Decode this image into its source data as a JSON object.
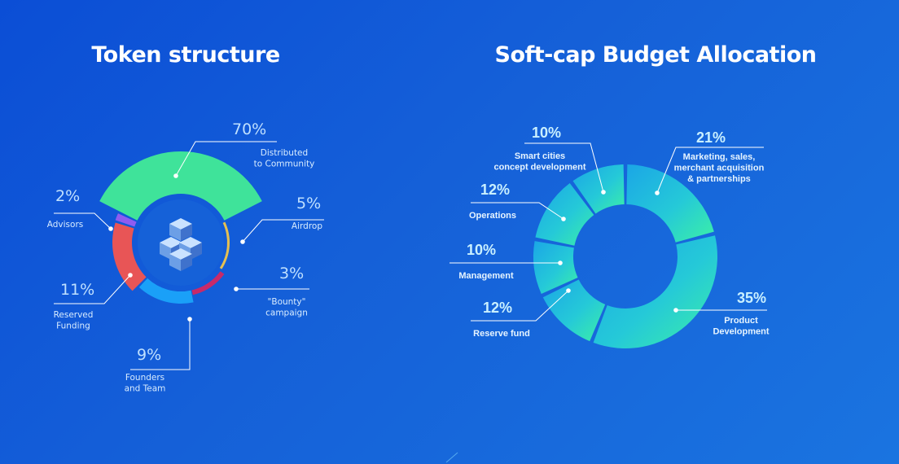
{
  "chart_data": [
    {
      "type": "pie",
      "title": "Token structure",
      "categories": [
        "Distributed to Community",
        "Airdrop",
        "\"Bounty\" campaign",
        "Founders and Team",
        "Reserved Funding",
        "Advisors"
      ],
      "values": [
        70,
        5,
        3,
        9,
        11,
        2
      ],
      "value_labels": [
        "70%",
        "5%",
        "3%",
        "9%",
        "11%",
        "2%"
      ],
      "colors": [
        "#3fe39a",
        "#e5c051",
        "#c72a6a",
        "#1aa0f8",
        "#e85556",
        "#8f5cf0"
      ]
    },
    {
      "type": "pie",
      "title": "Soft-cap Budget Allocation",
      "categories": [
        "Marketing, sales, merchant acquisition & partnerships",
        "Product Development",
        "Reserve fund",
        "Management",
        "Operations",
        "Smart cities concept development"
      ],
      "values": [
        21,
        35,
        12,
        10,
        12,
        10
      ],
      "value_labels": [
        "21%",
        "35%",
        "12%",
        "10%",
        "12%",
        "10%"
      ]
    }
  ]
}
